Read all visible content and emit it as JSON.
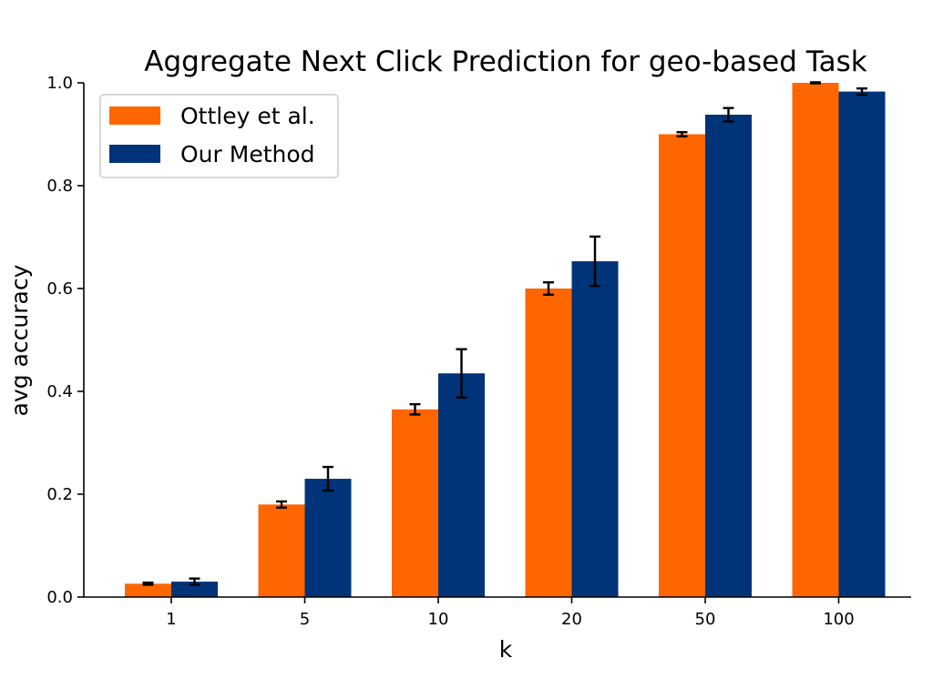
{
  "chart_data": {
    "type": "bar",
    "title": "Aggregate Next Click Prediction for geo-based Task",
    "xlabel": "k",
    "ylabel": "avg accuracy",
    "categories": [
      "1",
      "5",
      "10",
      "20",
      "50",
      "100"
    ],
    "ylim": [
      0,
      1.0
    ],
    "yticks": [
      "0.0",
      "0.2",
      "0.4",
      "0.6",
      "0.8",
      "1.0"
    ],
    "grid": false,
    "legend_position": "top-left",
    "series": [
      {
        "name": "Ottley et al.",
        "color": "#ff6600",
        "values": [
          0.026,
          0.18,
          0.365,
          0.6,
          0.9,
          1.0
        ],
        "errors": [
          0.002,
          0.006,
          0.01,
          0.012,
          0.004,
          0.001
        ]
      },
      {
        "name": "Our Method",
        "color": "#003377",
        "values": [
          0.03,
          0.23,
          0.435,
          0.653,
          0.938,
          0.983
        ],
        "errors": [
          0.006,
          0.023,
          0.047,
          0.048,
          0.013,
          0.006
        ]
      }
    ]
  }
}
